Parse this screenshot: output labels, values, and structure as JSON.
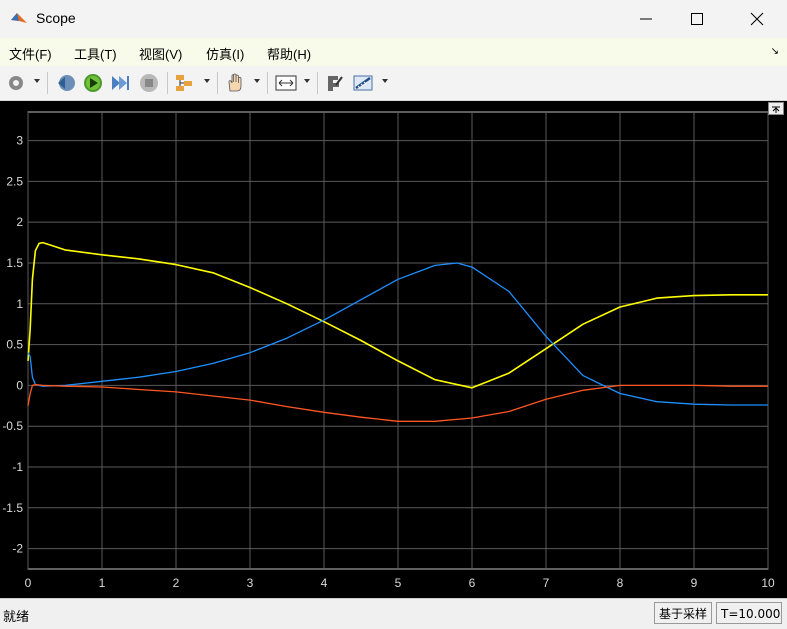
{
  "window": {
    "title": "Scope",
    "icon": "matlab-icon"
  },
  "menu": [
    "文件(F)",
    "工具(T)",
    "视图(V)",
    "仿真(I)",
    "帮助(H)"
  ],
  "toolbar": [
    "settings-icon",
    "step-back-icon",
    "run-icon",
    "step-forward-icon",
    "stop-icon",
    "signal-selector-icon",
    "pan-icon",
    "zoom-fit-icon",
    "style-icon",
    "measure-icon"
  ],
  "status": {
    "left": "就绪",
    "mode": "基于采样",
    "time": "T=10.000"
  },
  "chart_data": {
    "type": "line",
    "xlim": [
      0,
      10
    ],
    "ylim": [
      -2.25,
      3.35
    ],
    "xticks": [
      0,
      1,
      2,
      3,
      4,
      5,
      6,
      7,
      8,
      9,
      10
    ],
    "yticks": [
      -2,
      -1.5,
      -1,
      -0.5,
      0,
      0.5,
      1,
      1.5,
      2,
      2.5,
      3
    ],
    "grid": true,
    "series": [
      {
        "color": "#ffff00",
        "x": [
          0,
          0.03,
          0.06,
          0.1,
          0.15,
          0.2,
          0.3,
          0.5,
          1,
          1.5,
          2,
          2.5,
          3,
          3.5,
          4,
          4.5,
          5,
          5.5,
          6,
          6.5,
          7,
          7.5,
          8,
          8.5,
          9,
          9.5,
          10
        ],
        "y": [
          0.3,
          0.7,
          1.3,
          1.65,
          1.74,
          1.75,
          1.72,
          1.66,
          1.6,
          1.55,
          1.48,
          1.38,
          1.2,
          1.0,
          0.78,
          0.55,
          0.3,
          0.07,
          -0.03,
          0.15,
          0.45,
          0.75,
          0.96,
          1.07,
          1.1,
          1.11,
          1.11
        ]
      },
      {
        "color": "#1e90ff",
        "x": [
          0,
          0.03,
          0.06,
          0.1,
          0.2,
          0.5,
          1,
          1.5,
          2,
          2.5,
          3,
          3.5,
          4,
          4.5,
          5,
          5.5,
          5.8,
          6,
          6.5,
          7,
          7.5,
          8,
          8.5,
          9,
          9.5,
          10
        ],
        "y": [
          0.4,
          0.35,
          0.1,
          0.01,
          -0.01,
          0.0,
          0.05,
          0.1,
          0.17,
          0.27,
          0.4,
          0.58,
          0.8,
          1.05,
          1.3,
          1.47,
          1.5,
          1.45,
          1.15,
          0.6,
          0.12,
          -0.1,
          -0.2,
          -0.23,
          -0.24,
          -0.24
        ]
      },
      {
        "color": "#ff5722",
        "x": [
          0,
          0.03,
          0.06,
          0.1,
          0.2,
          0.5,
          1,
          1.5,
          2,
          2.5,
          3,
          3.5,
          4,
          4.5,
          5,
          5.5,
          6,
          6.5,
          7,
          7.5,
          8,
          8.5,
          9,
          9.5,
          10
        ],
        "y": [
          -0.25,
          -0.1,
          0.0,
          0.01,
          0.0,
          -0.01,
          -0.02,
          -0.05,
          -0.08,
          -0.13,
          -0.18,
          -0.26,
          -0.33,
          -0.39,
          -0.44,
          -0.44,
          -0.4,
          -0.32,
          -0.17,
          -0.06,
          0.0,
          0.0,
          0.0,
          -0.01,
          -0.01
        ]
      }
    ]
  }
}
